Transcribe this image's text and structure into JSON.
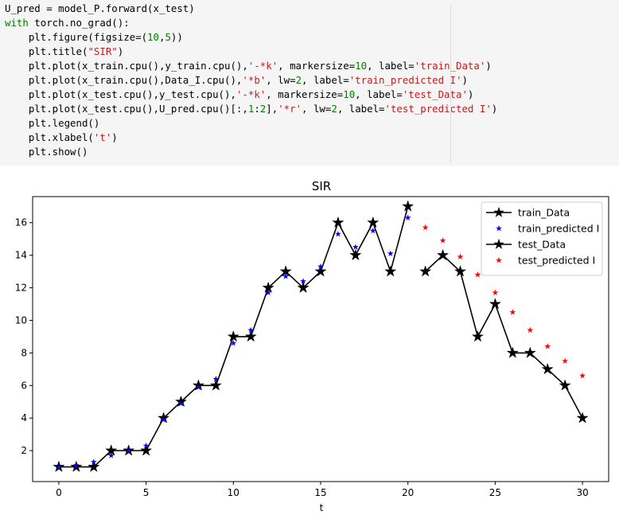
{
  "code_cell": {
    "lines": [
      [
        {
          "t": "U_pred = model_P.forward(x_test)",
          "c": ""
        }
      ],
      [
        {
          "t": "with",
          "c": "kw"
        },
        {
          "t": " torch.no_grad():",
          "c": ""
        }
      ],
      [
        {
          "t": "    plt.figure(figsize=(",
          "c": ""
        },
        {
          "t": "10",
          "c": "num"
        },
        {
          "t": ",",
          "c": ""
        },
        {
          "t": "5",
          "c": "num"
        },
        {
          "t": "))",
          "c": ""
        }
      ],
      [
        {
          "t": "    plt.title(",
          "c": ""
        },
        {
          "t": "\"SIR\"",
          "c": "str"
        },
        {
          "t": ")",
          "c": ""
        }
      ],
      [
        {
          "t": "    plt.plot(x_train.cpu(),y_train.cpu(),",
          "c": ""
        },
        {
          "t": "'-*k'",
          "c": "str"
        },
        {
          "t": ", markersize=",
          "c": ""
        },
        {
          "t": "10",
          "c": "num"
        },
        {
          "t": ", label=",
          "c": ""
        },
        {
          "t": "'train_Data'",
          "c": "str"
        },
        {
          "t": ")",
          "c": ""
        }
      ],
      [
        {
          "t": "    plt.plot(x_train.cpu(),Data_I.cpu(),",
          "c": ""
        },
        {
          "t": "'*b'",
          "c": "str"
        },
        {
          "t": ", lw=",
          "c": ""
        },
        {
          "t": "2",
          "c": "num"
        },
        {
          "t": ", label=",
          "c": ""
        },
        {
          "t": "'train_predicted I'",
          "c": "str"
        },
        {
          "t": ")",
          "c": ""
        }
      ],
      [
        {
          "t": "    plt.plot(x_test.cpu(),y_test.cpu(),",
          "c": ""
        },
        {
          "t": "'-*k'",
          "c": "str"
        },
        {
          "t": ", markersize=",
          "c": ""
        },
        {
          "t": "10",
          "c": "num"
        },
        {
          "t": ", label=",
          "c": ""
        },
        {
          "t": "'test_Data'",
          "c": "str"
        },
        {
          "t": ")",
          "c": ""
        }
      ],
      [
        {
          "t": "    plt.plot(x_test.cpu(),U_pred.cpu()[:,",
          "c": ""
        },
        {
          "t": "1",
          "c": "num"
        },
        {
          "t": ":",
          "c": ""
        },
        {
          "t": "2",
          "c": "num"
        },
        {
          "t": "],",
          "c": ""
        },
        {
          "t": "'*r'",
          "c": "str"
        },
        {
          "t": ", lw=",
          "c": ""
        },
        {
          "t": "2",
          "c": "num"
        },
        {
          "t": ", label=",
          "c": ""
        },
        {
          "t": "'test_predicted I'",
          "c": "str"
        },
        {
          "t": ")",
          "c": ""
        }
      ],
      [
        {
          "t": "    plt.legend()",
          "c": ""
        }
      ],
      [
        {
          "t": "    plt.xlabel(",
          "c": ""
        },
        {
          "t": "'t'",
          "c": "str"
        },
        {
          "t": ")",
          "c": ""
        }
      ],
      [
        {
          "t": "    plt.show()",
          "c": ""
        }
      ]
    ]
  },
  "colors": {
    "code_keyword": "#008000",
    "code_string": "#ba2121",
    "code_number": "#008000",
    "train_data": "#000000",
    "train_predicted": "#0000ff",
    "test_data": "#000000",
    "test_predicted": "#ff0000"
  },
  "chart_data": {
    "type": "line",
    "title": "SIR",
    "xlabel": "t",
    "ylabel": "",
    "xlim": [
      -1.5,
      31.5
    ],
    "ylim": [
      0.1,
      17.6
    ],
    "xticks": [
      0,
      5,
      10,
      15,
      20,
      25,
      30
    ],
    "yticks": [
      2,
      4,
      6,
      8,
      10,
      12,
      14,
      16
    ],
    "grid": false,
    "legend_position": "top-right",
    "series": [
      {
        "name": "train_Data",
        "style": "line-star-marker",
        "color": "#000000",
        "x": [
          0,
          1,
          2,
          3,
          4,
          5,
          6,
          7,
          8,
          9,
          10,
          11,
          12,
          13,
          14,
          15,
          16,
          17,
          18,
          19,
          20
        ],
        "y": [
          1,
          1,
          1,
          2,
          2,
          2,
          4,
          5,
          6,
          6,
          9,
          9,
          12,
          13,
          12,
          13,
          16,
          14,
          16,
          13,
          17
        ]
      },
      {
        "name": "train_predicted I",
        "style": "star-marker",
        "color": "#0000ff",
        "x": [
          0,
          1,
          2,
          3,
          4,
          5,
          6,
          7,
          8,
          9,
          10,
          11,
          12,
          13,
          14,
          15,
          16,
          17,
          18,
          19,
          20
        ],
        "y": [
          1.0,
          1.1,
          1.3,
          1.7,
          2.0,
          2.3,
          3.9,
          4.9,
          5.9,
          6.4,
          8.6,
          9.4,
          11.7,
          12.7,
          12.4,
          13.3,
          15.3,
          14.5,
          15.5,
          14.1,
          16.3
        ]
      },
      {
        "name": "test_Data",
        "style": "line-star-marker",
        "color": "#000000",
        "x": [
          21,
          22,
          23,
          24,
          25,
          26,
          27,
          28,
          29,
          30
        ],
        "y": [
          13,
          14,
          13,
          9,
          11,
          8,
          8,
          7,
          6,
          4
        ]
      },
      {
        "name": "test_predicted I",
        "style": "star-marker",
        "color": "#ff0000",
        "x": [
          21,
          22,
          23,
          24,
          25,
          26,
          27,
          28,
          29,
          30
        ],
        "y": [
          15.7,
          14.9,
          13.9,
          12.8,
          11.7,
          10.5,
          9.4,
          8.4,
          7.5,
          6.6
        ]
      }
    ]
  }
}
